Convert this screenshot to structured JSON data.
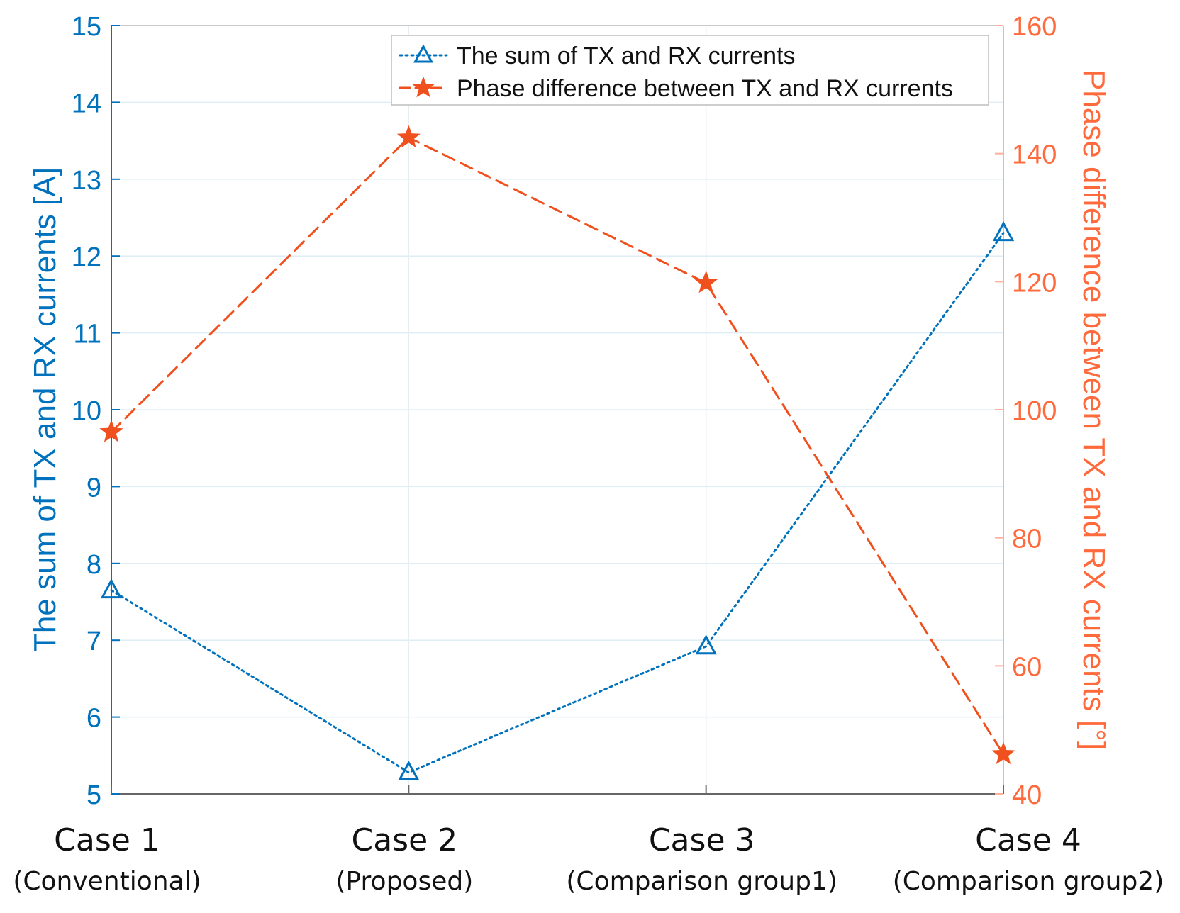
{
  "chart_data": {
    "type": "line",
    "categories": [
      {
        "name": "Case 1",
        "sub": "(Conventional)"
      },
      {
        "name": "Case 2",
        "sub": "(Proposed)"
      },
      {
        "name": "Case 3",
        "sub": "(Comparison group1)"
      },
      {
        "name": "Case 4",
        "sub": "(Comparison group2)"
      }
    ],
    "y_left": {
      "label": "The sum of TX and RX currents [A]",
      "range": [
        5,
        15
      ],
      "ticks": [
        5,
        6,
        7,
        8,
        9,
        10,
        11,
        12,
        13,
        14,
        15
      ],
      "color": "#0072BD"
    },
    "y_right": {
      "label": "Phase difference between TX and RX currents [°]",
      "range": [
        40,
        160
      ],
      "ticks": [
        40,
        60,
        80,
        100,
        120,
        140,
        160
      ],
      "color": "#FF6A3D"
    },
    "series": [
      {
        "name": "The sum of TX and RX currents",
        "axis": "left",
        "values": [
          7.65,
          5.28,
          6.92,
          12.3
        ],
        "color": "#0072BD",
        "line_style": "dotted",
        "marker": "triangle"
      },
      {
        "name": "Phase difference between TX and RX currents",
        "axis": "right",
        "values": [
          96.5,
          142.5,
          119.8,
          46.2
        ],
        "color": "#F0501E",
        "line_style": "dashed",
        "marker": "star"
      }
    ],
    "grid": true,
    "legend_position": "top-right"
  }
}
